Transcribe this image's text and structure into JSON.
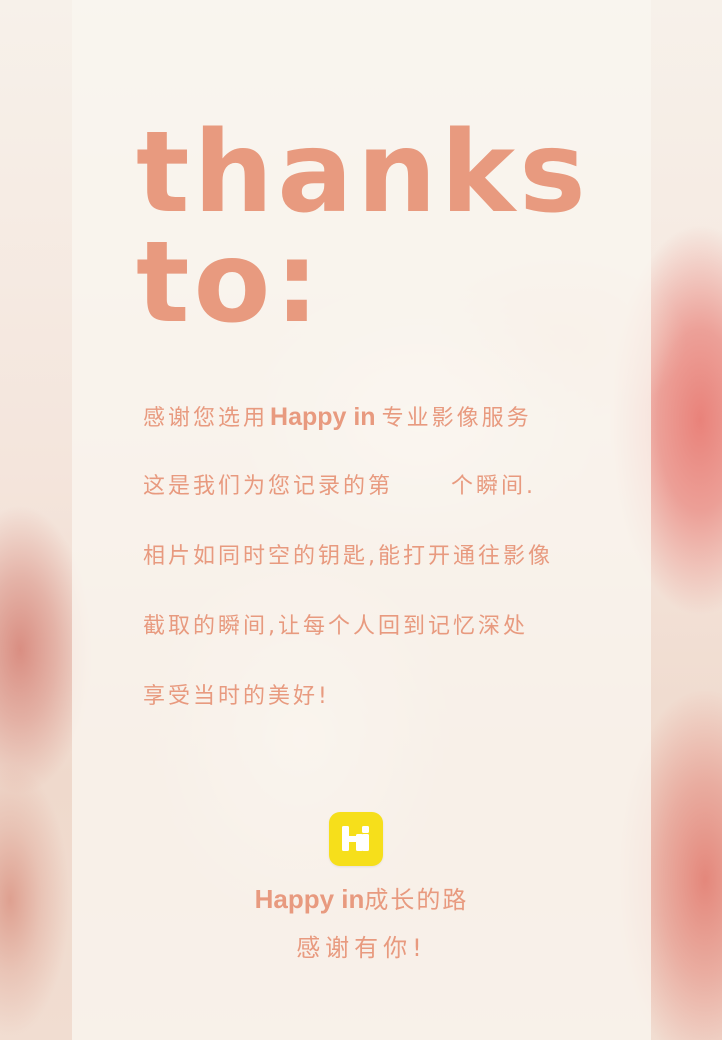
{
  "heading": {
    "line1": "thanks",
    "line2": "to:"
  },
  "message": {
    "line1_prefix": "感谢您选用",
    "line1_brand": "Happy in",
    "line1_suffix": "专业影像服务",
    "line2_prefix": "这是我们为您记录的第",
    "line2_suffix": "个瞬间.",
    "line3": "相片如同时空的钥匙,能打开通往影像",
    "line4": "截取的瞬间,让每个人回到记忆深处",
    "line5": "享受当时的美好!"
  },
  "footer": {
    "logo_letter": "Hi",
    "tagline_brand": "Happy in",
    "tagline_rest": "成长的路",
    "thanks": "感谢有你!"
  },
  "colors": {
    "accent": "#e89a7f",
    "logo_bg": "#f6df1b",
    "panel": "#faf6f0"
  }
}
